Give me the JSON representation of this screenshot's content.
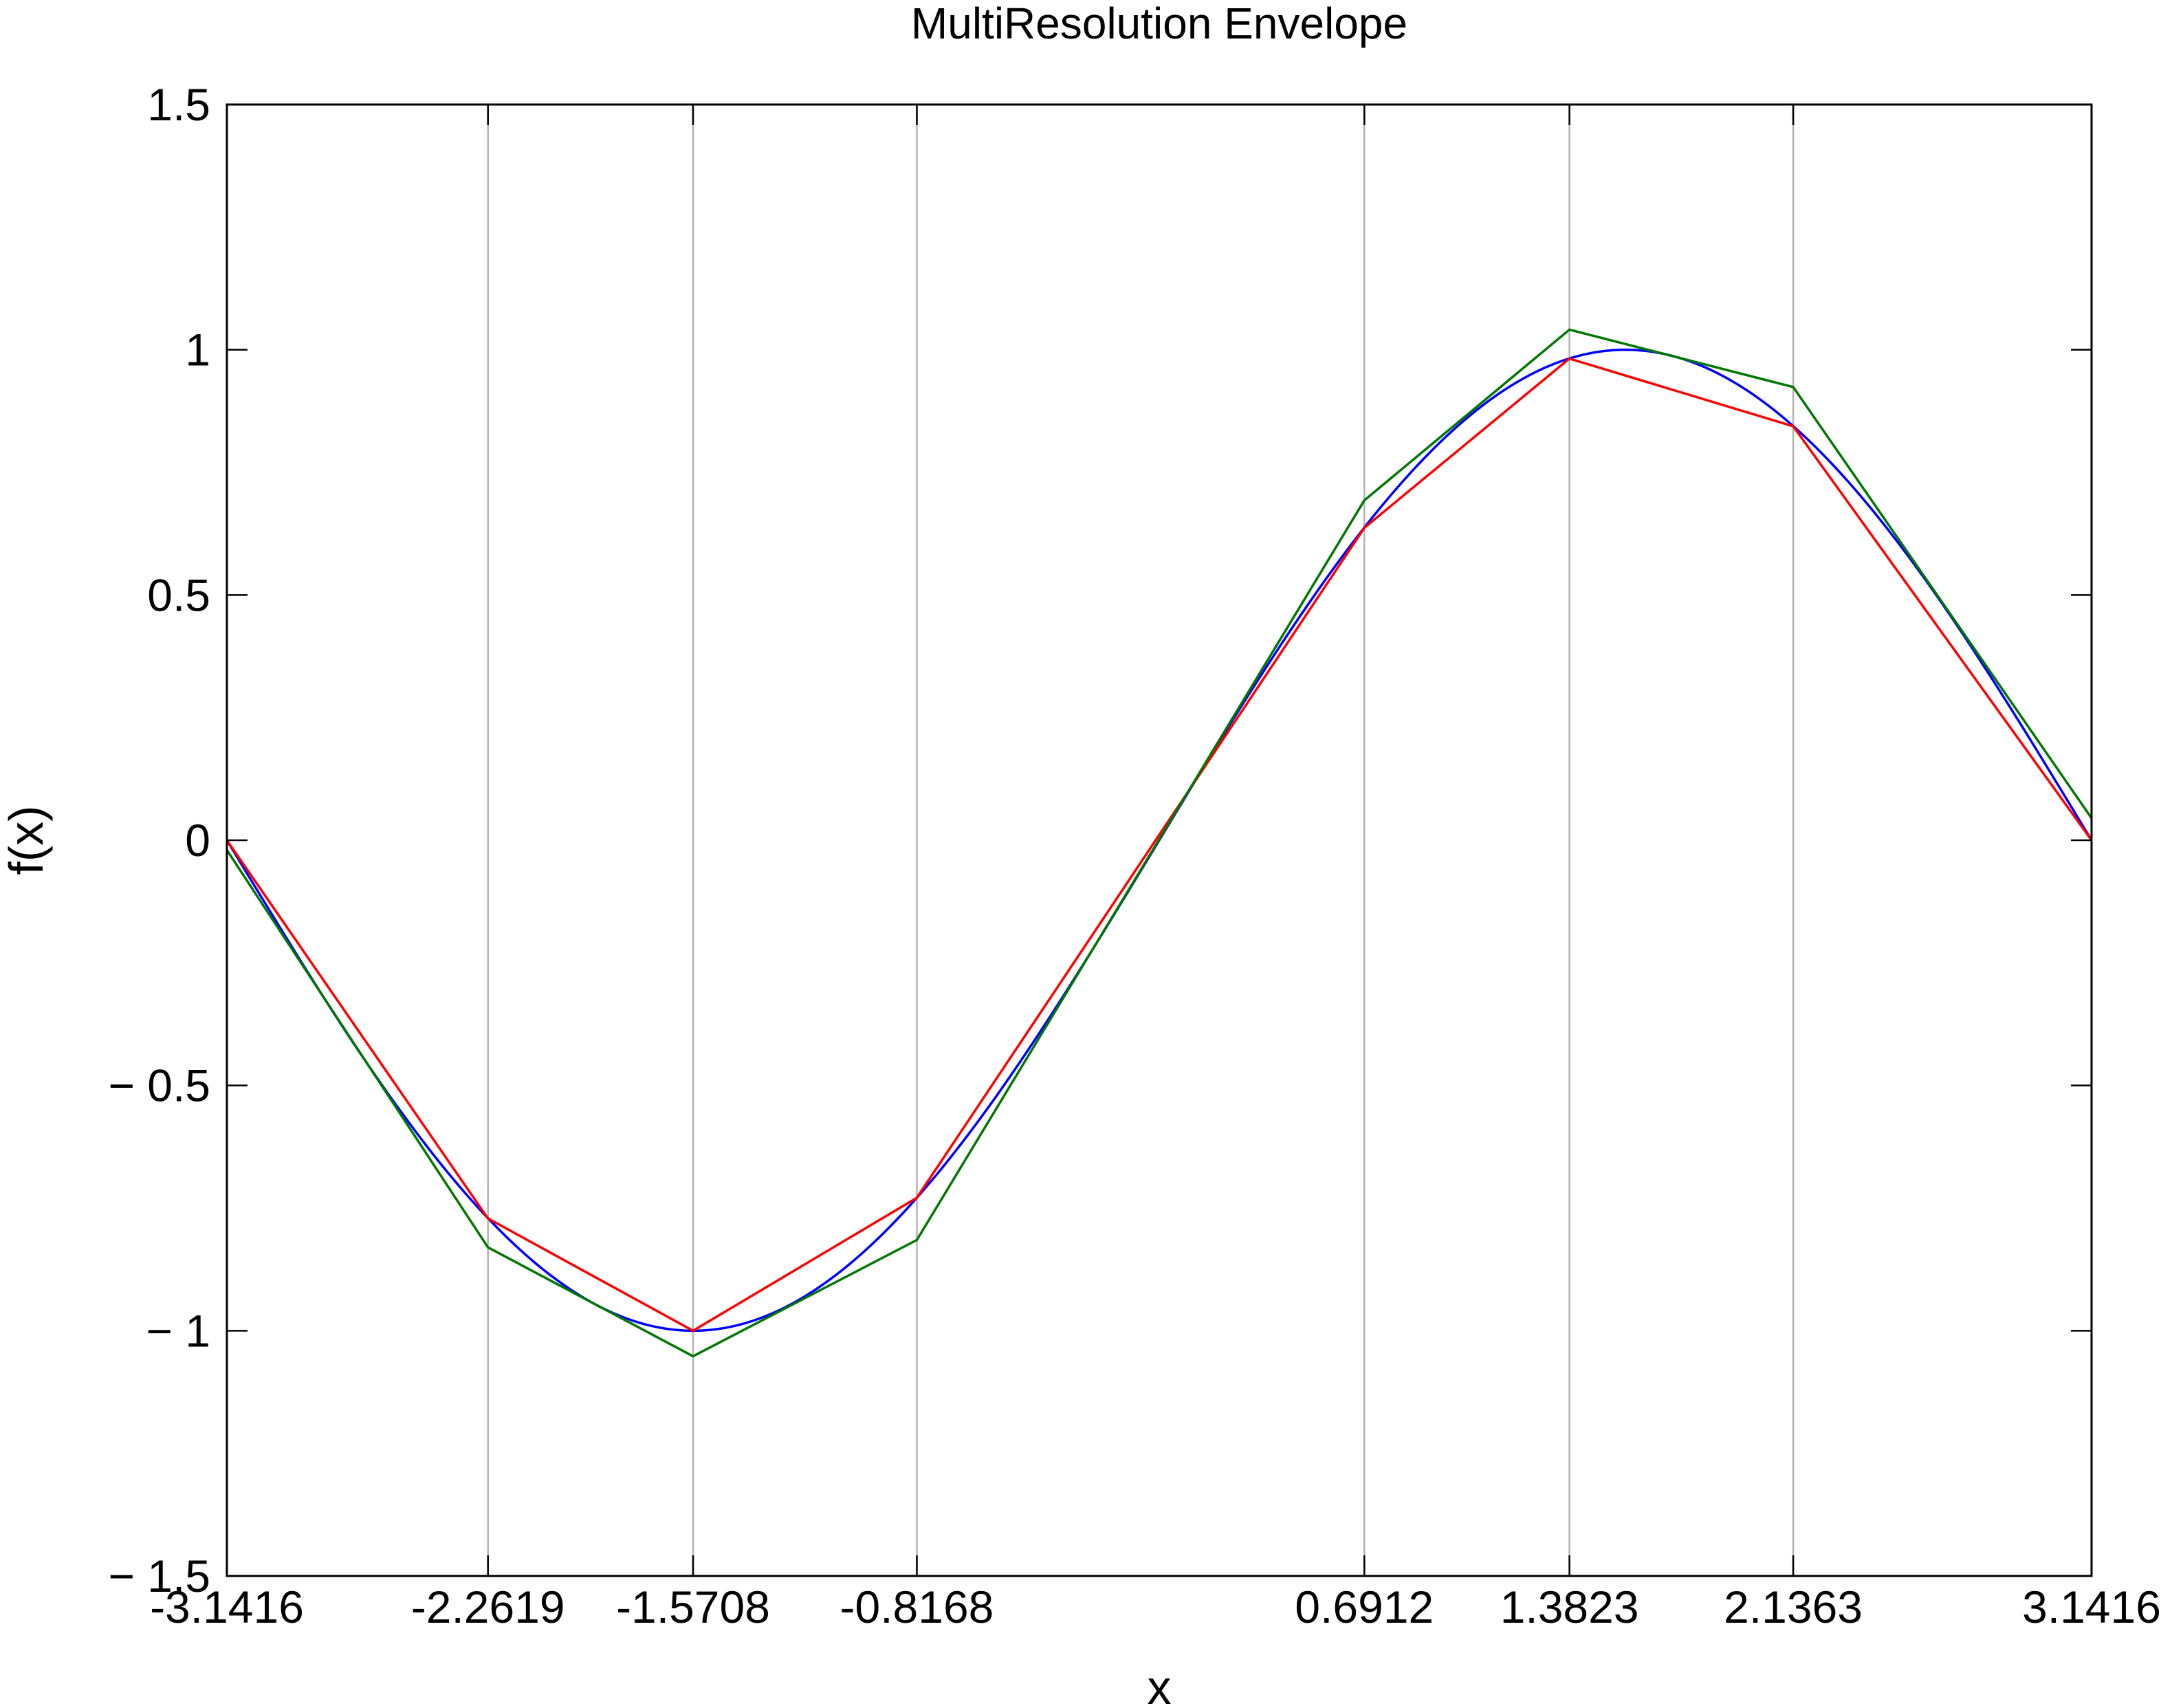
{
  "chart_data": {
    "type": "line",
    "title": "MultiResolution Envelope",
    "xlabel": "x",
    "ylabel": "f(x)",
    "xlim": [
      -3.1416,
      3.1416
    ],
    "ylim": [
      -1.5,
      1.5
    ],
    "x_grid": true,
    "y_grid": false,
    "x_ticks": [
      -3.1416,
      -2.2619,
      -1.5708,
      -0.8168,
      0.6912,
      1.3823,
      2.1363,
      3.1416
    ],
    "x_tick_labels": [
      "-3.1416",
      "-2.2619",
      "-1.5708",
      "-0.8168",
      "0.6912",
      "1.3823",
      "2.1363",
      "3.1416"
    ],
    "y_ticks": [
      -1.5,
      -1,
      -0.5,
      0,
      0.5,
      1,
      1.5
    ],
    "y_tick_labels": [
      "− 1.5",
      "− 1",
      "− 0.5",
      "0",
      "0.5",
      "1",
      "1.5"
    ],
    "series": [
      {
        "color": "#0000ff",
        "function": "sin",
        "samples": 400
      },
      {
        "color": "#ff0000",
        "x": [
          -3.1416,
          -2.2619,
          -1.5708,
          -0.8168,
          0.6912,
          1.3823,
          2.1363,
          3.1416
        ],
        "y": [
          0,
          -0.771,
          -1.0,
          -0.729,
          0.637,
          0.982,
          0.844,
          0
        ]
      },
      {
        "color": "#007700",
        "x": [
          -3.1416,
          -2.2619,
          -1.5708,
          -0.8168,
          0.6912,
          1.3823,
          2.1363,
          3.1416
        ],
        "y": [
          -0.02,
          -0.83,
          -1.052,
          -0.815,
          0.693,
          1.041,
          0.924,
          0.045
        ]
      }
    ]
  }
}
